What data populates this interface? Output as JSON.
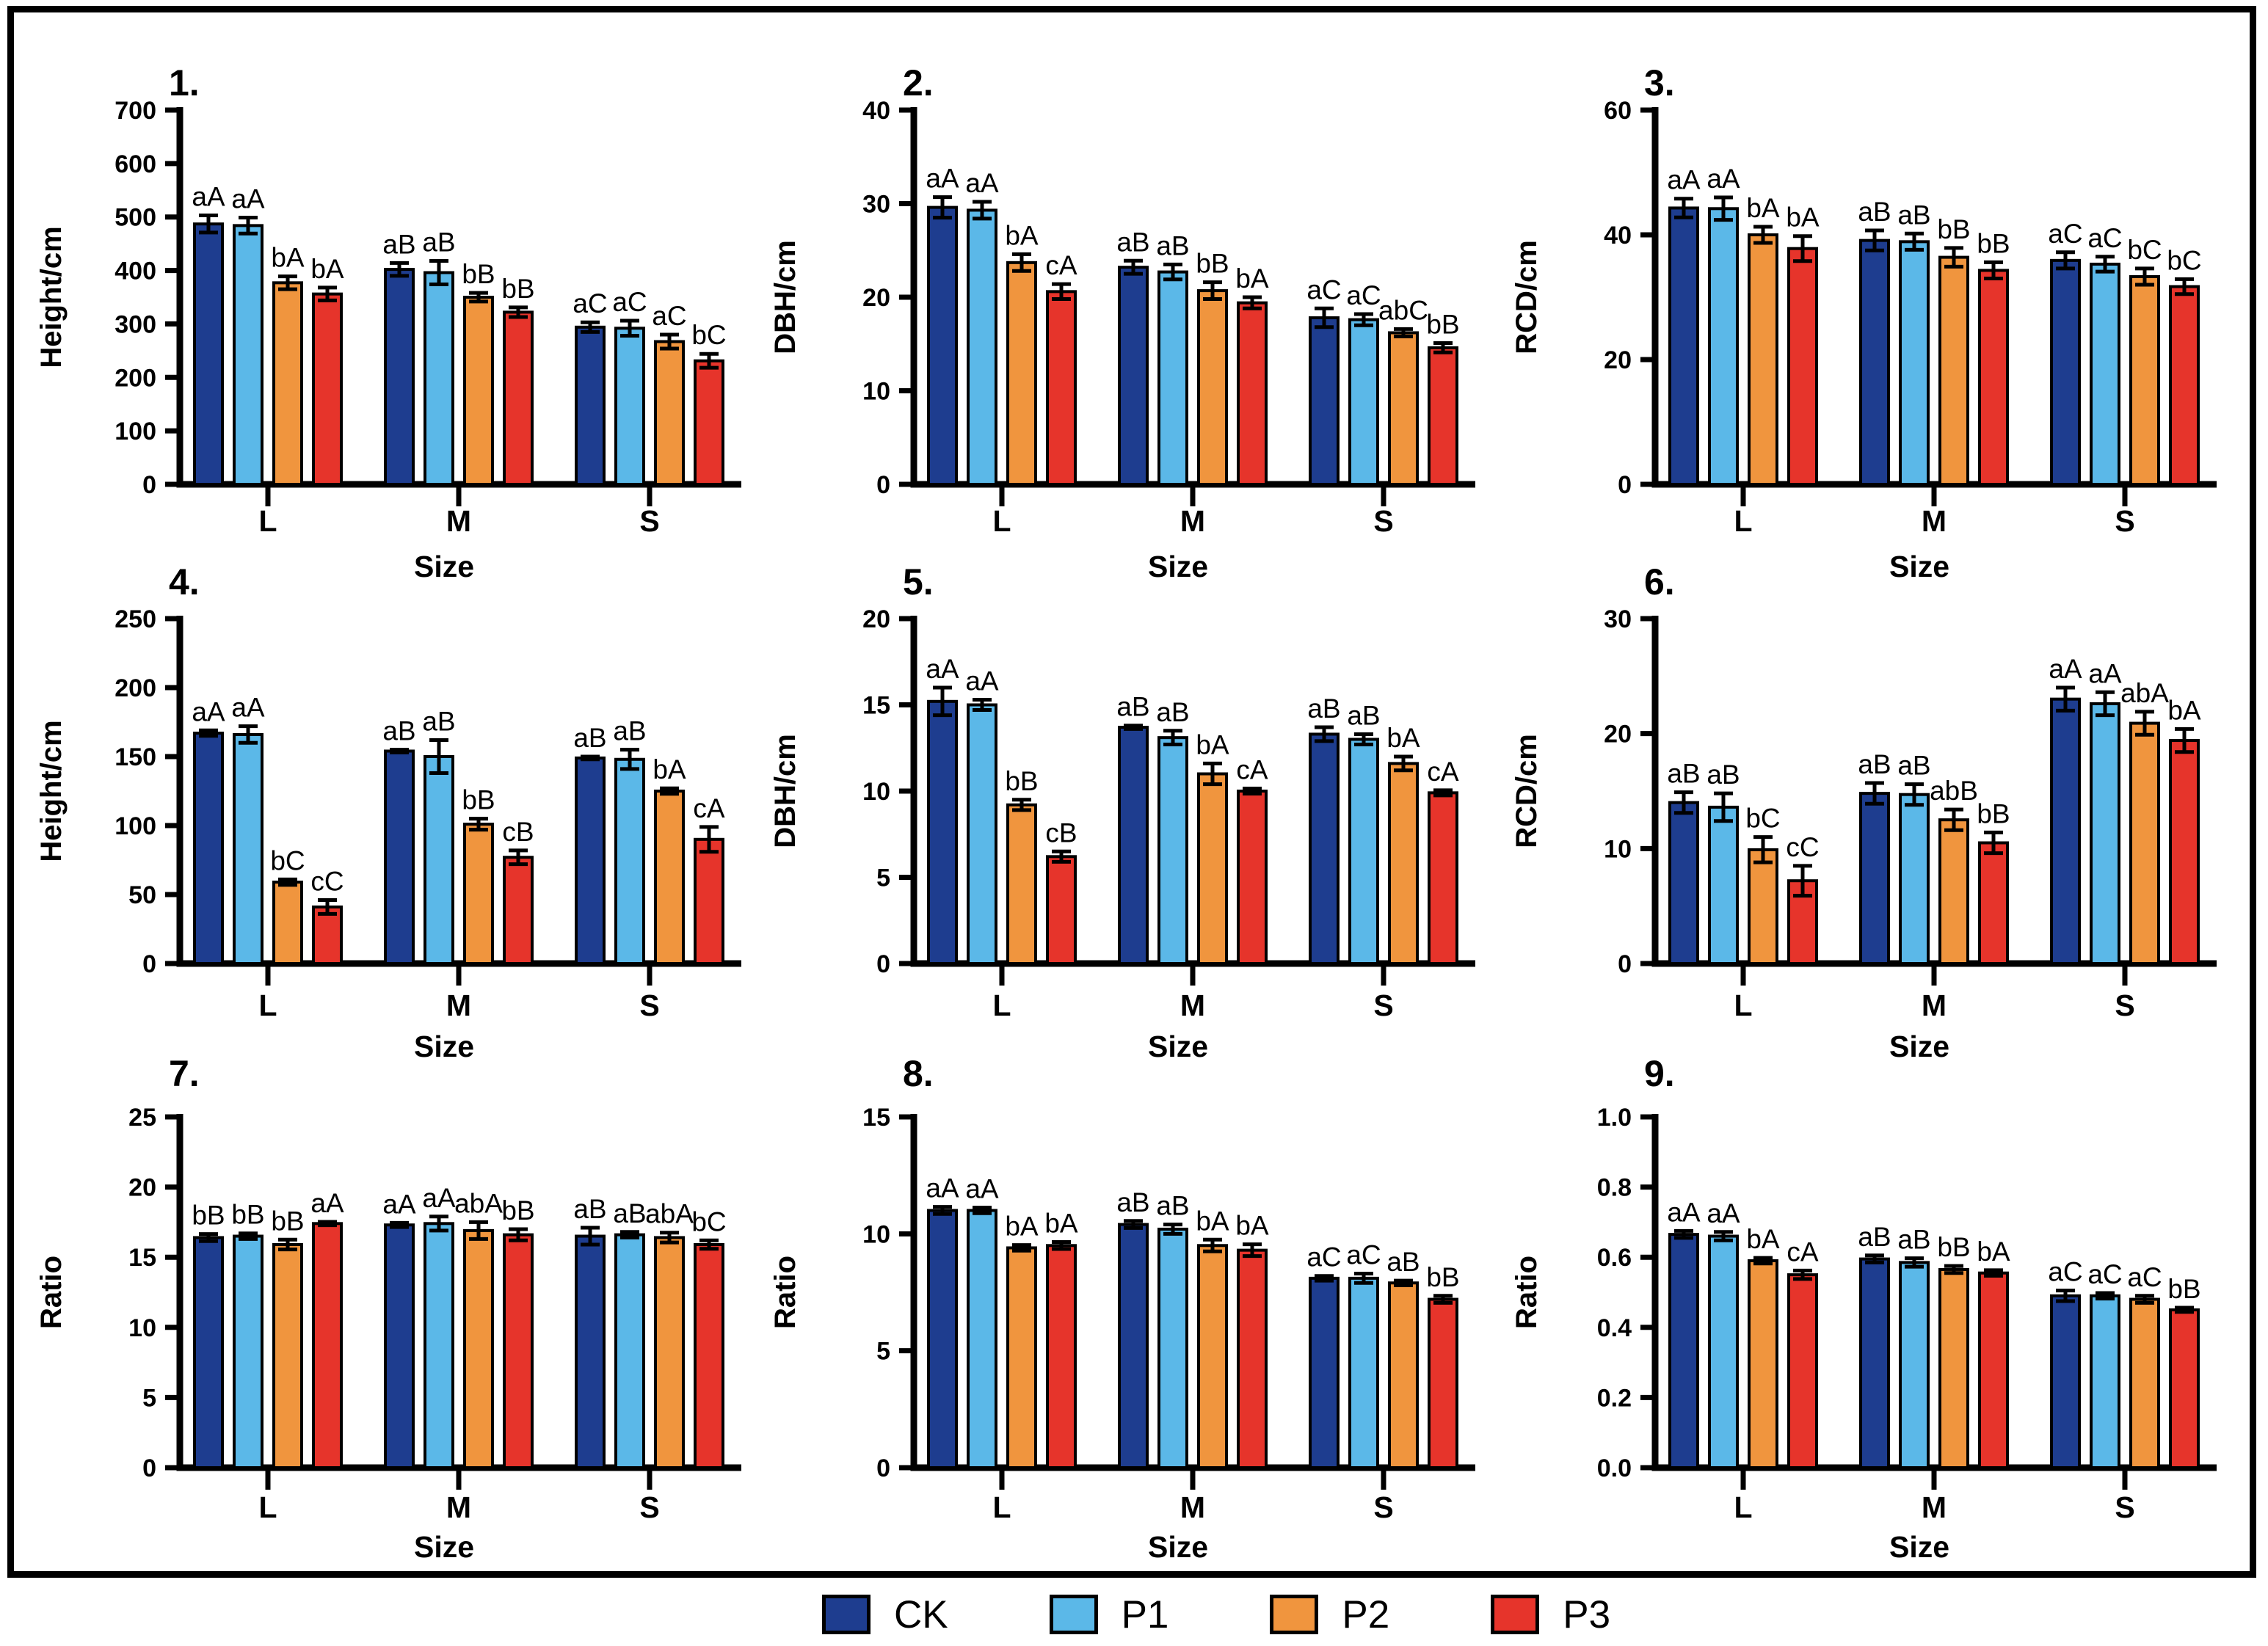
{
  "figure": {
    "xlabel": "Size",
    "categories": [
      "L",
      "M",
      "S"
    ],
    "series_names": [
      "CK",
      "P1",
      "P2",
      "P3"
    ],
    "colors": {
      "CK": "#1e3d8f",
      "P1": "#5bb8e8",
      "P2": "#f0953e",
      "P3": "#e6342b"
    },
    "axis_color": "#000000",
    "background": "#ffffff"
  },
  "legend": {
    "items": [
      {
        "label": "CK",
        "color": "#1e3d8f"
      },
      {
        "label": "P1",
        "color": "#5bb8e8"
      },
      {
        "label": "P2",
        "color": "#f0953e"
      },
      {
        "label": "P3",
        "color": "#e6342b"
      }
    ]
  },
  "chart_data": [
    {
      "panel": "1.",
      "type": "bar",
      "ylabel": "Height/cm",
      "xlabel": "Size",
      "categories": [
        "L",
        "M",
        "S"
      ],
      "ylim": [
        0,
        700
      ],
      "yticks": [
        "0",
        "100",
        "200",
        "300",
        "400",
        "500",
        "600",
        "700"
      ],
      "legend_position": "bottom",
      "grid": false,
      "series": [
        {
          "name": "CK",
          "values": [
            487,
            402,
            294
          ],
          "errors": [
            16,
            12,
            9
          ],
          "sig_labels": [
            "aA",
            "aB",
            "aC"
          ]
        },
        {
          "name": "P1",
          "values": [
            484,
            396,
            292
          ],
          "errors": [
            15,
            22,
            14
          ],
          "sig_labels": [
            "aA",
            "aB",
            "aC"
          ]
        },
        {
          "name": "P2",
          "values": [
            377,
            350,
            267
          ],
          "errors": [
            12,
            8,
            13
          ],
          "sig_labels": [
            "bA",
            "bB",
            "aC"
          ]
        },
        {
          "name": "P3",
          "values": [
            356,
            322,
            231
          ],
          "errors": [
            12,
            9,
            13
          ],
          "sig_labels": [
            "bA",
            "bB",
            "bC"
          ]
        }
      ]
    },
    {
      "panel": "2.",
      "type": "bar",
      "ylabel": "DBH/cm",
      "xlabel": "Size",
      "categories": [
        "L",
        "M",
        "S"
      ],
      "ylim": [
        0,
        40
      ],
      "yticks": [
        "0",
        "10",
        "20",
        "30",
        "40"
      ],
      "legend_position": "bottom",
      "grid": false,
      "series": [
        {
          "name": "CK",
          "values": [
            29.6,
            23.2,
            17.8
          ],
          "errors": [
            1.1,
            0.7,
            1.0
          ],
          "sig_labels": [
            "aA",
            "aB",
            "aC"
          ]
        },
        {
          "name": "P1",
          "values": [
            29.3,
            22.7,
            17.6
          ],
          "errors": [
            0.9,
            0.8,
            0.6
          ],
          "sig_labels": [
            "aA",
            "aB",
            "aC"
          ]
        },
        {
          "name": "P2",
          "values": [
            23.7,
            20.7,
            16.2
          ],
          "errors": [
            0.9,
            0.9,
            0.4
          ],
          "sig_labels": [
            "bA",
            "bB",
            "abC"
          ]
        },
        {
          "name": "P3",
          "values": [
            20.6,
            19.4,
            14.6
          ],
          "errors": [
            0.8,
            0.6,
            0.5
          ],
          "sig_labels": [
            "cA",
            "bA",
            "bB"
          ]
        }
      ]
    },
    {
      "panel": "3.",
      "type": "bar",
      "ylabel": "RCD/cm",
      "xlabel": "Size",
      "categories": [
        "L",
        "M",
        "S"
      ],
      "ylim": [
        0,
        60
      ],
      "yticks": [
        "0",
        "20",
        "40",
        "60"
      ],
      "legend_position": "bottom",
      "grid": false,
      "series": [
        {
          "name": "CK",
          "values": [
            44.3,
            39.1,
            35.9
          ],
          "errors": [
            1.5,
            1.6,
            1.3
          ],
          "sig_labels": [
            "aA",
            "aB",
            "aC"
          ]
        },
        {
          "name": "P1",
          "values": [
            44.2,
            38.9,
            35.3
          ],
          "errors": [
            1.8,
            1.3,
            1.2
          ],
          "sig_labels": [
            "aA",
            "aB",
            "aC"
          ]
        },
        {
          "name": "P2",
          "values": [
            40.0,
            36.4,
            33.3
          ],
          "errors": [
            1.3,
            1.5,
            1.3
          ],
          "sig_labels": [
            "bA",
            "bB",
            "bC"
          ]
        },
        {
          "name": "P3",
          "values": [
            37.8,
            34.3,
            31.7
          ],
          "errors": [
            2.0,
            1.3,
            1.2
          ],
          "sig_labels": [
            "bA",
            "bB",
            "bC"
          ]
        }
      ]
    },
    {
      "panel": "4.",
      "type": "bar",
      "ylabel": "Height/cm",
      "xlabel": "Size",
      "categories": [
        "L",
        "M",
        "S"
      ],
      "ylim": [
        0,
        250
      ],
      "yticks": [
        "0",
        "50",
        "100",
        "150",
        "200",
        "250"
      ],
      "legend_position": "bottom",
      "grid": false,
      "series": [
        {
          "name": "CK",
          "values": [
            167,
            154,
            149
          ],
          "errors": [
            2,
            1,
            1
          ],
          "sig_labels": [
            "aA",
            "aB",
            "aB"
          ]
        },
        {
          "name": "P1",
          "values": [
            166,
            150,
            148
          ],
          "errors": [
            6,
            12,
            7
          ],
          "sig_labels": [
            "aA",
            "aB",
            "aB"
          ]
        },
        {
          "name": "P2",
          "values": [
            59,
            101,
            125
          ],
          "errors": [
            2,
            4,
            2
          ],
          "sig_labels": [
            "bC",
            "bB",
            "bA"
          ]
        },
        {
          "name": "P3",
          "values": [
            41,
            77,
            90
          ],
          "errors": [
            5,
            5,
            9
          ],
          "sig_labels": [
            "cC",
            "cB",
            "cA"
          ]
        }
      ]
    },
    {
      "panel": "5.",
      "type": "bar",
      "ylabel": "DBH/cm",
      "xlabel": "Size",
      "categories": [
        "L",
        "M",
        "S"
      ],
      "ylim": [
        0,
        20
      ],
      "yticks": [
        "0",
        "5",
        "10",
        "15",
        "20"
      ],
      "legend_position": "bottom",
      "grid": false,
      "series": [
        {
          "name": "CK",
          "values": [
            15.2,
            13.7,
            13.3
          ],
          "errors": [
            0.8,
            0.1,
            0.4
          ],
          "sig_labels": [
            "aA",
            "aB",
            "aB"
          ]
        },
        {
          "name": "P1",
          "values": [
            15.0,
            13.1,
            13.0
          ],
          "errors": [
            0.3,
            0.4,
            0.3
          ],
          "sig_labels": [
            "aA",
            "aB",
            "aB"
          ]
        },
        {
          "name": "P2",
          "values": [
            9.2,
            11.0,
            11.6
          ],
          "errors": [
            0.3,
            0.6,
            0.4
          ],
          "sig_labels": [
            "bB",
            "bA",
            "bA"
          ]
        },
        {
          "name": "P3",
          "values": [
            6.2,
            10.0,
            9.9
          ],
          "errors": [
            0.3,
            0.15,
            0.15
          ],
          "sig_labels": [
            "cB",
            "cA",
            "cA"
          ]
        }
      ]
    },
    {
      "panel": "6.",
      "type": "bar",
      "ylabel": "RCD/cm",
      "xlabel": "Size",
      "categories": [
        "L",
        "M",
        "S"
      ],
      "ylim": [
        0,
        30
      ],
      "yticks": [
        "0",
        "10",
        "20",
        "30"
      ],
      "legend_position": "bottom",
      "grid": false,
      "series": [
        {
          "name": "CK",
          "values": [
            14.0,
            14.8,
            23.0
          ],
          "errors": [
            0.9,
            0.9,
            1.0
          ],
          "sig_labels": [
            "aB",
            "aB",
            "aA"
          ]
        },
        {
          "name": "P1",
          "values": [
            13.6,
            14.7,
            22.6
          ],
          "errors": [
            1.2,
            0.9,
            1.0
          ],
          "sig_labels": [
            "aB",
            "aB",
            "aA"
          ]
        },
        {
          "name": "P2",
          "values": [
            9.9,
            12.5,
            20.9
          ],
          "errors": [
            1.1,
            0.9,
            1.0
          ],
          "sig_labels": [
            "bC",
            "abB",
            "abA"
          ]
        },
        {
          "name": "P3",
          "values": [
            7.2,
            10.5,
            19.4
          ],
          "errors": [
            1.3,
            0.9,
            1.0
          ],
          "sig_labels": [
            "cC",
            "bB",
            "bA"
          ]
        }
      ]
    },
    {
      "panel": "7.",
      "type": "bar",
      "ylabel": "Ratio",
      "xlabel": "Size",
      "categories": [
        "L",
        "M",
        "S"
      ],
      "ylim": [
        0,
        25
      ],
      "yticks": [
        "0",
        "5",
        "10",
        "15",
        "20",
        "25"
      ],
      "legend_position": "bottom",
      "grid": false,
      "series": [
        {
          "name": "CK",
          "values": [
            16.4,
            17.3,
            16.5
          ],
          "errors": [
            0.25,
            0.15,
            0.6
          ],
          "sig_labels": [
            "bB",
            "aA",
            "aB"
          ]
        },
        {
          "name": "P1",
          "values": [
            16.5,
            17.4,
            16.6
          ],
          "errors": [
            0.2,
            0.5,
            0.2
          ],
          "sig_labels": [
            "bB",
            "aA",
            "aB"
          ]
        },
        {
          "name": "P2",
          "values": [
            15.9,
            16.9,
            16.4
          ],
          "errors": [
            0.35,
            0.6,
            0.35
          ],
          "sig_labels": [
            "bB",
            "abA",
            "abA"
          ]
        },
        {
          "name": "P3",
          "values": [
            17.4,
            16.6,
            15.9
          ],
          "errors": [
            0.12,
            0.4,
            0.3
          ],
          "sig_labels": [
            "aA",
            "bB",
            "bC"
          ]
        }
      ]
    },
    {
      "panel": "8.",
      "type": "bar",
      "ylabel": "Ratio",
      "xlabel": "Size",
      "categories": [
        "L",
        "M",
        "S"
      ],
      "ylim": [
        0,
        15
      ],
      "yticks": [
        "0",
        "5",
        "10",
        "15"
      ],
      "legend_position": "bottom",
      "grid": false,
      "series": [
        {
          "name": "CK",
          "values": [
            11.0,
            10.4,
            8.1
          ],
          "errors": [
            0.15,
            0.15,
            0.1
          ],
          "sig_labels": [
            "aA",
            "aB",
            "aC"
          ]
        },
        {
          "name": "P1",
          "values": [
            11.0,
            10.2,
            8.1
          ],
          "errors": [
            0.12,
            0.2,
            0.2
          ],
          "sig_labels": [
            "aA",
            "aB",
            "aC"
          ]
        },
        {
          "name": "P2",
          "values": [
            9.4,
            9.5,
            7.9
          ],
          "errors": [
            0.12,
            0.25,
            0.1
          ],
          "sig_labels": [
            "bA",
            "bA",
            "aB"
          ]
        },
        {
          "name": "P3",
          "values": [
            9.5,
            9.3,
            7.2
          ],
          "errors": [
            0.15,
            0.25,
            0.15
          ],
          "sig_labels": [
            "bA",
            "bA",
            "bB"
          ]
        }
      ]
    },
    {
      "panel": "9.",
      "type": "bar",
      "ylabel": "Ratio",
      "xlabel": "Size",
      "categories": [
        "L",
        "M",
        "S"
      ],
      "ylim": [
        0,
        1.0
      ],
      "yticks": [
        "0.0",
        "0.2",
        "0.4",
        "0.6",
        "0.8",
        "1.0"
      ],
      "legend_position": "bottom",
      "grid": false,
      "series": [
        {
          "name": "CK",
          "values": [
            0.665,
            0.595,
            0.49
          ],
          "errors": [
            0.01,
            0.01,
            0.015
          ],
          "sig_labels": [
            "aA",
            "aB",
            "aC"
          ]
        },
        {
          "name": "P1",
          "values": [
            0.66,
            0.585,
            0.49
          ],
          "errors": [
            0.012,
            0.012,
            0.008
          ],
          "sig_labels": [
            "aA",
            "aB",
            "aC"
          ]
        },
        {
          "name": "P2",
          "values": [
            0.59,
            0.565,
            0.48
          ],
          "errors": [
            0.008,
            0.01,
            0.01
          ],
          "sig_labels": [
            "bA",
            "bB",
            "aC"
          ]
        },
        {
          "name": "P3",
          "values": [
            0.55,
            0.555,
            0.45
          ],
          "errors": [
            0.012,
            0.008,
            0.006
          ],
          "sig_labels": [
            "cA",
            "bA",
            "bB"
          ]
        }
      ]
    }
  ]
}
